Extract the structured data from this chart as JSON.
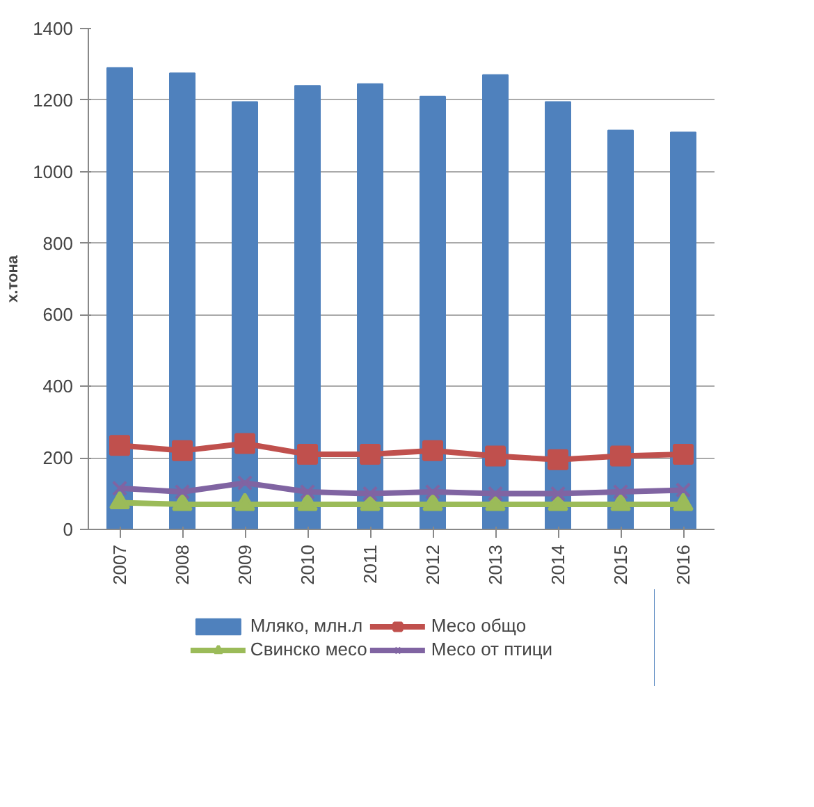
{
  "chart_data": {
    "type": "bar",
    "ylabel": "х.тона",
    "categories": [
      "2007",
      "2008",
      "2009",
      "2010",
      "2011",
      "2012",
      "2013",
      "2014",
      "2015",
      "2016"
    ],
    "series": [
      {
        "name": "Мляко, млн.л",
        "color": "#4f81bd",
        "values": [
          1290,
          1275,
          1195,
          1240,
          1245,
          1210,
          1270,
          1195,
          1115,
          1110
        ]
      },
      {
        "name": "Месо общо",
        "type": "line",
        "marker": "square",
        "color": "#c0504d",
        "values": [
          235,
          220,
          240,
          210,
          210,
          220,
          205,
          195,
          205,
          210
        ]
      },
      {
        "name": "Свинско месо",
        "type": "line",
        "marker": "triangle",
        "color": "#9bbb59",
        "values": [
          75,
          70,
          70,
          70,
          70,
          70,
          70,
          70,
          70,
          70
        ]
      },
      {
        "name": "Месо от птици",
        "type": "line",
        "marker": "cross",
        "color": "#8064a2",
        "values": [
          115,
          105,
          130,
          105,
          100,
          105,
          100,
          100,
          105,
          110
        ]
      }
    ],
    "ylim": [
      0,
      1400
    ],
    "yticks": [
      0,
      200,
      400,
      600,
      800,
      1000,
      1200,
      1400
    ],
    "grid": "y",
    "legend": "bottom"
  }
}
